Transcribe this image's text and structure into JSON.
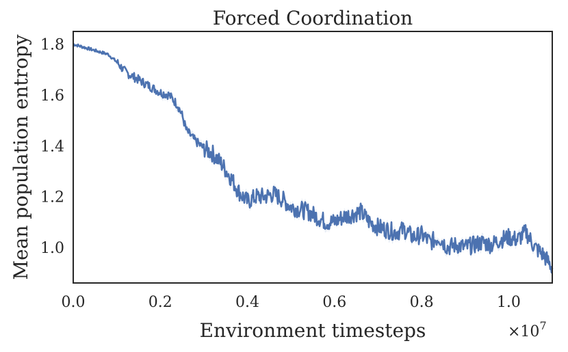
{
  "chart_data": {
    "type": "line",
    "title": "Forced Coordination",
    "xlabel": "Environment timesteps",
    "ylabel": "Mean population entropy",
    "x_multiplier_label": "×10",
    "x_multiplier_exponent": "7",
    "xlim": [
      0,
      1.1
    ],
    "ylim": [
      0.86,
      1.85
    ],
    "xticks": [
      0.0,
      0.2,
      0.4,
      0.6,
      0.8,
      1.0
    ],
    "xtick_labels": [
      "0.0",
      "0.2",
      "0.4",
      "0.6",
      "0.8",
      "1.0"
    ],
    "yticks": [
      1.0,
      1.2,
      1.4,
      1.6,
      1.8
    ],
    "ytick_labels": [
      "1.0",
      "1.2",
      "1.4",
      "1.6",
      "1.8"
    ],
    "grid": false,
    "colors": {
      "line": "#4c72b0",
      "band": "#4c72b0",
      "frame": "#262626"
    },
    "series": [
      {
        "x": [
          0.0,
          0.02,
          0.04,
          0.06,
          0.08,
          0.1,
          0.12,
          0.14,
          0.16,
          0.18,
          0.2,
          0.22,
          0.24,
          0.25,
          0.26,
          0.28,
          0.3,
          0.32,
          0.34,
          0.36,
          0.38,
          0.4,
          0.42,
          0.44,
          0.46,
          0.48,
          0.5,
          0.52,
          0.54,
          0.56,
          0.58,
          0.6,
          0.62,
          0.64,
          0.66,
          0.68,
          0.7,
          0.72,
          0.74,
          0.76,
          0.78,
          0.8,
          0.82,
          0.84,
          0.86,
          0.88,
          0.9,
          0.92,
          0.94,
          0.96,
          0.98,
          1.0,
          1.02,
          1.04,
          1.06,
          1.08,
          1.1
        ],
        "y": [
          1.8,
          1.79,
          1.78,
          1.77,
          1.76,
          1.73,
          1.69,
          1.67,
          1.65,
          1.63,
          1.61,
          1.6,
          1.56,
          1.52,
          1.46,
          1.42,
          1.39,
          1.37,
          1.33,
          1.28,
          1.22,
          1.18,
          1.2,
          1.2,
          1.21,
          1.19,
          1.16,
          1.15,
          1.14,
          1.12,
          1.1,
          1.1,
          1.12,
          1.13,
          1.14,
          1.1,
          1.08,
          1.07,
          1.06,
          1.07,
          1.04,
          1.05,
          1.02,
          1.04,
          1.0,
          1.01,
          1.0,
          1.01,
          1.02,
          1.01,
          1.03,
          1.04,
          1.03,
          1.06,
          1.0,
          0.97,
          0.92
        ]
      }
    ]
  }
}
